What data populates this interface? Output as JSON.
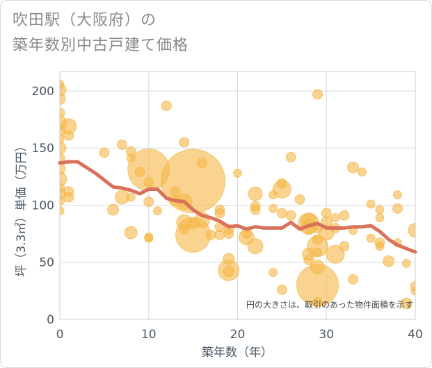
{
  "chart_data": {
    "type": "scatter",
    "title_lines": [
      "吹田駅（大阪府）の",
      "築年数別中古戸建て価格"
    ],
    "xlabel": "築年数（年）",
    "ylabel": "坪（3.3㎡）単価（万円）",
    "xlim": [
      0,
      40
    ],
    "ylim": [
      0,
      217
    ],
    "xticks": [
      0,
      10,
      20,
      30,
      40
    ],
    "yticks": [
      0,
      50,
      100,
      150,
      200
    ],
    "grid": true,
    "annotation": "円の大きさは、取引のあった物件面積を示す",
    "colors": {
      "bubble": "#f5b84a",
      "trend": "#d9705a",
      "grid": "#d6dbe0",
      "text": "#4a5763"
    },
    "points": [
      {
        "x": 0,
        "y": 206,
        "size": 6
      },
      {
        "x": 0,
        "y": 201,
        "size": 9
      },
      {
        "x": 0,
        "y": 193,
        "size": 8
      },
      {
        "x": 0,
        "y": 181,
        "size": 7
      },
      {
        "x": 0,
        "y": 172,
        "size": 10
      },
      {
        "x": 0,
        "y": 165,
        "size": 8
      },
      {
        "x": 0,
        "y": 158,
        "size": 6
      },
      {
        "x": 0,
        "y": 150,
        "size": 9
      },
      {
        "x": 0,
        "y": 141,
        "size": 7
      },
      {
        "x": 0,
        "y": 132,
        "size": 8
      },
      {
        "x": 0,
        "y": 123,
        "size": 10
      },
      {
        "x": 0,
        "y": 115,
        "size": 7
      },
      {
        "x": 0,
        "y": 110,
        "size": 8
      },
      {
        "x": 0,
        "y": 104,
        "size": 7
      },
      {
        "x": 0,
        "y": 95,
        "size": 6
      },
      {
        "x": 1,
        "y": 169,
        "size": 11
      },
      {
        "x": 1,
        "y": 161,
        "size": 7
      },
      {
        "x": 1,
        "y": 112,
        "size": 7
      },
      {
        "x": 1,
        "y": 107,
        "size": 7
      },
      {
        "x": 5,
        "y": 146,
        "size": 7
      },
      {
        "x": 6,
        "y": 96,
        "size": 8
      },
      {
        "x": 7,
        "y": 153,
        "size": 7
      },
      {
        "x": 7,
        "y": 107,
        "size": 10
      },
      {
        "x": 8,
        "y": 147,
        "size": 7
      },
      {
        "x": 8,
        "y": 141,
        "size": 6
      },
      {
        "x": 8,
        "y": 107,
        "size": 6
      },
      {
        "x": 8,
        "y": 76,
        "size": 9
      },
      {
        "x": 9,
        "y": 129,
        "size": 7
      },
      {
        "x": 10,
        "y": 131,
        "size": 30
      },
      {
        "x": 10,
        "y": 120,
        "size": 7
      },
      {
        "x": 10,
        "y": 103,
        "size": 7
      },
      {
        "x": 10,
        "y": 72,
        "size": 6
      },
      {
        "x": 10,
        "y": 71,
        "size": 6
      },
      {
        "x": 11,
        "y": 95,
        "size": 6
      },
      {
        "x": 12,
        "y": 187,
        "size": 7
      },
      {
        "x": 13,
        "y": 112,
        "size": 7
      },
      {
        "x": 13,
        "y": 104,
        "size": 7
      },
      {
        "x": 14,
        "y": 155,
        "size": 7
      },
      {
        "x": 14,
        "y": 103,
        "size": 11
      },
      {
        "x": 14,
        "y": 85,
        "size": 11
      },
      {
        "x": 14,
        "y": 79,
        "size": 7
      },
      {
        "x": 15,
        "y": 121,
        "size": 46
      },
      {
        "x": 15,
        "y": 74,
        "size": 25
      },
      {
        "x": 15,
        "y": 84,
        "size": 8
      },
      {
        "x": 16,
        "y": 137,
        "size": 7
      },
      {
        "x": 16,
        "y": 87,
        "size": 11
      },
      {
        "x": 17,
        "y": 74,
        "size": 7
      },
      {
        "x": 18,
        "y": 96,
        "size": 7
      },
      {
        "x": 18,
        "y": 93,
        "size": 7
      },
      {
        "x": 18,
        "y": 81,
        "size": 7
      },
      {
        "x": 18,
        "y": 74,
        "size": 7
      },
      {
        "x": 19,
        "y": 79,
        "size": 7
      },
      {
        "x": 19,
        "y": 75,
        "size": 7
      },
      {
        "x": 19,
        "y": 53,
        "size": 8
      },
      {
        "x": 19,
        "y": 43,
        "size": 15
      },
      {
        "x": 19,
        "y": 42,
        "size": 8
      },
      {
        "x": 20,
        "y": 128,
        "size": 6
      },
      {
        "x": 21,
        "y": 75,
        "size": 7
      },
      {
        "x": 21,
        "y": 72,
        "size": 11
      },
      {
        "x": 22,
        "y": 110,
        "size": 10
      },
      {
        "x": 22,
        "y": 99,
        "size": 7
      },
      {
        "x": 22,
        "y": 96,
        "size": 7
      },
      {
        "x": 22,
        "y": 64,
        "size": 11
      },
      {
        "x": 24,
        "y": 109,
        "size": 6
      },
      {
        "x": 24,
        "y": 97,
        "size": 6
      },
      {
        "x": 24,
        "y": 41,
        "size": 6
      },
      {
        "x": 25,
        "y": 119,
        "size": 7
      },
      {
        "x": 25,
        "y": 114,
        "size": 13
      },
      {
        "x": 25,
        "y": 93,
        "size": 7
      },
      {
        "x": 25,
        "y": 26,
        "size": 7
      },
      {
        "x": 26,
        "y": 142,
        "size": 7
      },
      {
        "x": 26,
        "y": 91,
        "size": 7
      },
      {
        "x": 27,
        "y": 105,
        "size": 7
      },
      {
        "x": 28,
        "y": 86,
        "size": 11
      },
      {
        "x": 28,
        "y": 84,
        "size": 15
      },
      {
        "x": 28,
        "y": 81,
        "size": 11
      },
      {
        "x": 28,
        "y": 57,
        "size": 9
      },
      {
        "x": 28,
        "y": 52,
        "size": 7
      },
      {
        "x": 29,
        "y": 197,
        "size": 7
      },
      {
        "x": 29,
        "y": 80,
        "size": 7
      },
      {
        "x": 29,
        "y": 70,
        "size": 7
      },
      {
        "x": 29,
        "y": 64,
        "size": 15
      },
      {
        "x": 29,
        "y": 59,
        "size": 6
      },
      {
        "x": 29,
        "y": 46,
        "size": 10
      },
      {
        "x": 29,
        "y": 30,
        "size": 30
      },
      {
        "x": 29,
        "y": 15,
        "size": 7
      },
      {
        "x": 30,
        "y": 93,
        "size": 7
      },
      {
        "x": 30,
        "y": 85,
        "size": 8
      },
      {
        "x": 30,
        "y": 76,
        "size": 11
      },
      {
        "x": 31,
        "y": 89,
        "size": 6
      },
      {
        "x": 31,
        "y": 80,
        "size": 7
      },
      {
        "x": 31,
        "y": 57,
        "size": 13
      },
      {
        "x": 32,
        "y": 91,
        "size": 7
      },
      {
        "x": 32,
        "y": 64,
        "size": 7
      },
      {
        "x": 33,
        "y": 133,
        "size": 8
      },
      {
        "x": 33,
        "y": 78,
        "size": 6
      },
      {
        "x": 33,
        "y": 35,
        "size": 7
      },
      {
        "x": 34,
        "y": 129,
        "size": 6
      },
      {
        "x": 35,
        "y": 101,
        "size": 6
      },
      {
        "x": 35,
        "y": 71,
        "size": 6
      },
      {
        "x": 36,
        "y": 96,
        "size": 6
      },
      {
        "x": 36,
        "y": 89,
        "size": 6
      },
      {
        "x": 36,
        "y": 67,
        "size": 7
      },
      {
        "x": 36,
        "y": 64,
        "size": 6
      },
      {
        "x": 37,
        "y": 51,
        "size": 8
      },
      {
        "x": 38,
        "y": 109,
        "size": 6
      },
      {
        "x": 38,
        "y": 97,
        "size": 7
      },
      {
        "x": 38,
        "y": 67,
        "size": 6
      },
      {
        "x": 39,
        "y": 49,
        "size": 6
      },
      {
        "x": 39,
        "y": 14,
        "size": 8
      },
      {
        "x": 40,
        "y": 78,
        "size": 10
      },
      {
        "x": 40,
        "y": 29,
        "size": 7
      },
      {
        "x": 40,
        "y": 25,
        "size": 6
      }
    ],
    "trend": {
      "x": [
        0,
        1,
        2,
        3,
        4,
        5,
        6,
        7,
        8,
        9,
        10,
        11,
        12,
        13,
        14,
        15,
        16,
        17,
        18,
        19,
        20,
        21,
        22,
        23,
        24,
        25,
        26,
        27,
        28,
        29,
        30,
        31,
        32,
        33,
        34,
        35,
        36,
        37,
        38,
        39,
        40
      ],
      "y": [
        137,
        138,
        138,
        133,
        128,
        122,
        116,
        115,
        113,
        110,
        114,
        114,
        106,
        104,
        103,
        96,
        91,
        89,
        86,
        81,
        82,
        79,
        81,
        80,
        80,
        80,
        85,
        79,
        82,
        84,
        80,
        80,
        80,
        81,
        81,
        82,
        77,
        70,
        65,
        62,
        59
      ]
    }
  }
}
